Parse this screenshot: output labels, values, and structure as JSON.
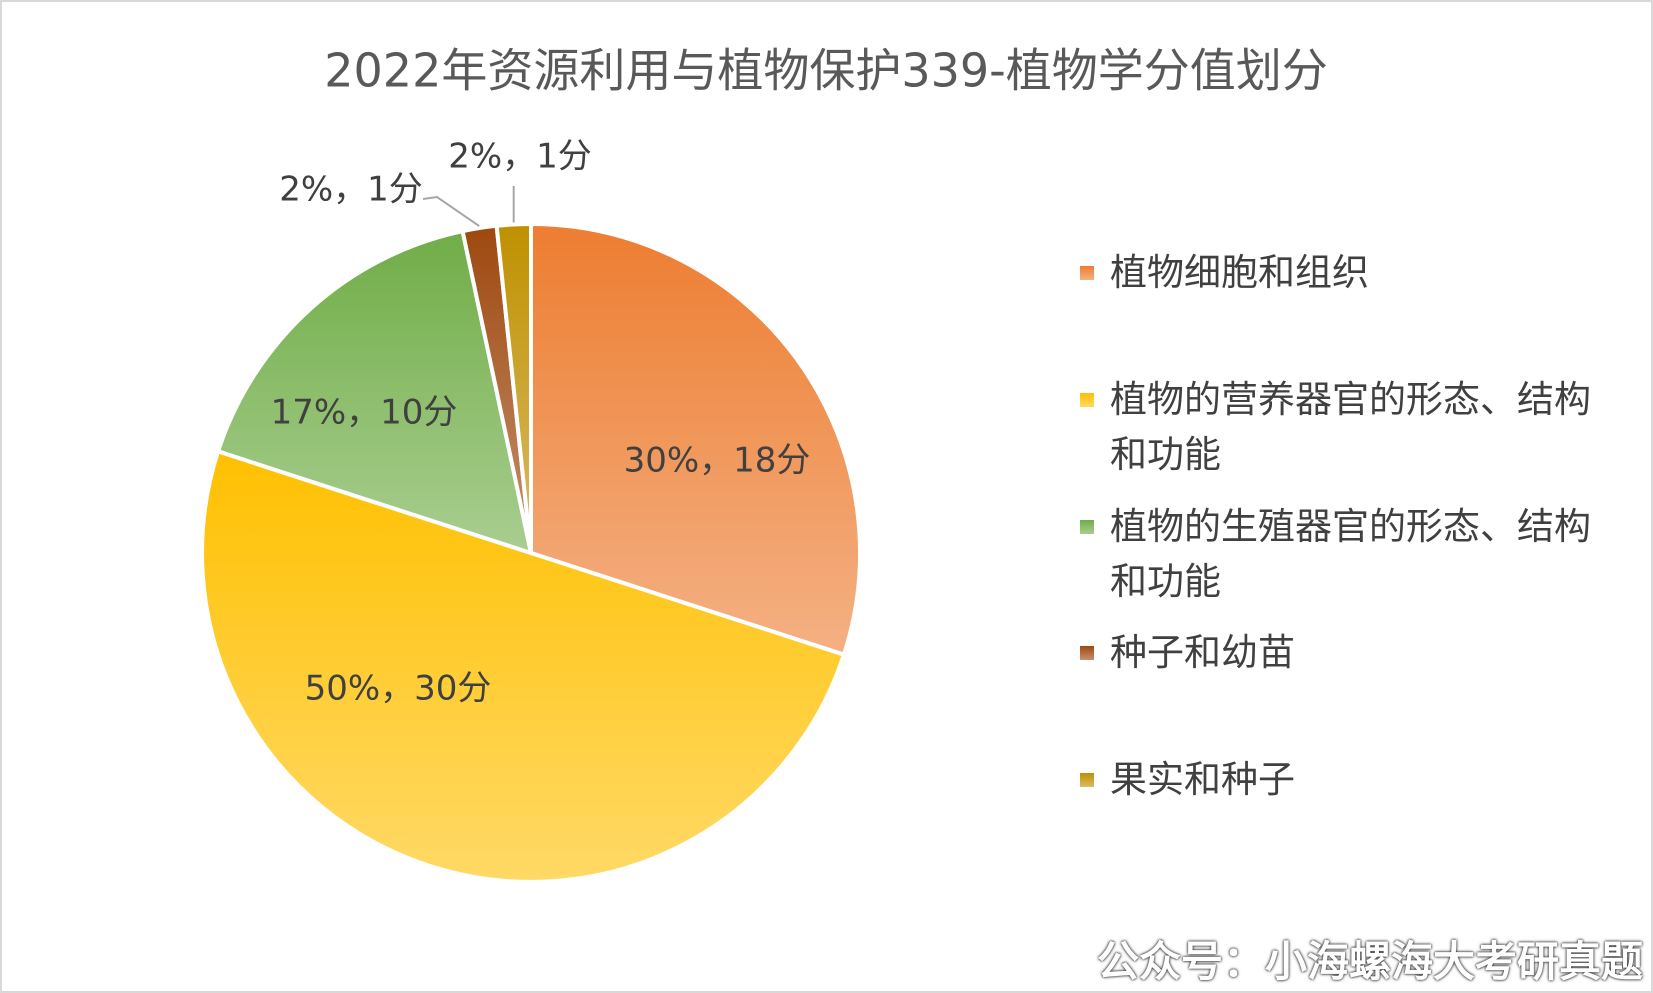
{
  "chart_data": {
    "type": "pie",
    "title": "2022年资源利用与植物保护339-植物学分值划分",
    "categories": [
      "植物细胞和组织",
      "植物的营养器官的形态、结构和功能",
      "植物的生殖器官的形态、结构和功能",
      "种子和幼苗",
      "果实和种子"
    ],
    "values": [
      18,
      30,
      10,
      1,
      1
    ],
    "value_labels": [
      "30%，18分",
      "50%，30分",
      "17%，10分",
      "2%，1分",
      "2%，1分"
    ],
    "colors": [
      "#ED7D31",
      "#FFC000",
      "#70AD47",
      "#9E480E",
      "#BF9000"
    ],
    "legend": "right"
  },
  "watermark": "公众号：小海螺海大考研真题"
}
